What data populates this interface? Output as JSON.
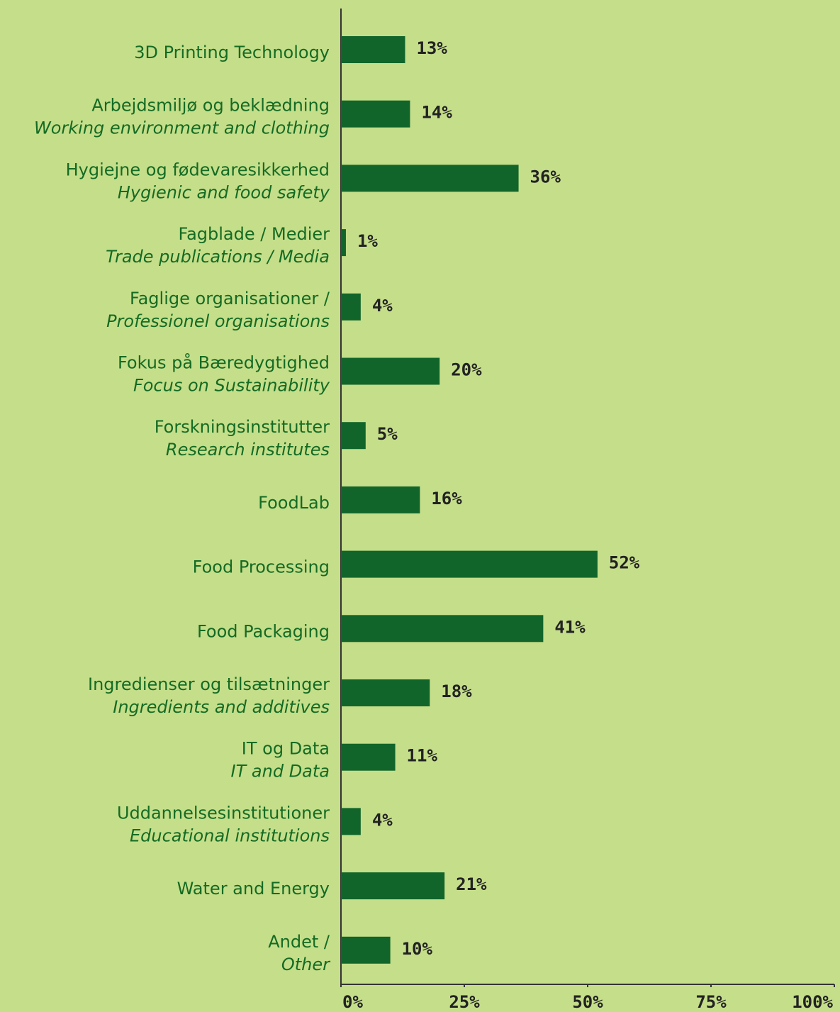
{
  "chart_data": {
    "type": "hbar",
    "color": "#11652a",
    "categories": [
      {
        "label": "3D Printing Technology"
      },
      {
        "label": "Arbejdsmiljø og beklædning",
        "translation": "Working environment and clothing"
      },
      {
        "label": "Hygiejne og fødevaresikkerhed",
        "translation": "Hygienic and food safety"
      },
      {
        "label": "Fagblade / Medier",
        "translation": "Trade publications / Media"
      },
      {
        "label": "Faglige organisationer /",
        "translation": "Professionel organisations"
      },
      {
        "label": "Fokus på Bæredygtighed",
        "translation": "Focus on Sustainability"
      },
      {
        "label": "Forskningsinstitutter",
        "translation": "Research institutes"
      },
      {
        "label": "FoodLab"
      },
      {
        "label": "Food Processing"
      },
      {
        "label": "Food Packaging"
      },
      {
        "label": "Ingredienser og tilsætninger",
        "translation": "Ingredients and additives"
      },
      {
        "label": "IT og Data",
        "translation": "IT and Data"
      },
      {
        "label": "Uddannelsesinstitutioner",
        "translation": "Educational institutions"
      },
      {
        "label": "Water and Energy"
      },
      {
        "label": "Andet /",
        "translation": "Other"
      }
    ],
    "values": [
      13,
      14,
      36,
      1,
      4,
      20,
      5,
      16,
      52,
      41,
      18,
      11,
      4,
      21,
      10
    ],
    "value_labels": [
      "13%",
      "14%",
      "36%",
      "1%",
      "4%",
      "20%",
      "5%",
      "16%",
      "52%",
      "41%",
      "18%",
      "11%",
      "4%",
      "21%",
      "10%"
    ],
    "xlim": [
      0,
      100
    ],
    "xticks": [
      {
        "value": 0,
        "label": "0%"
      },
      {
        "value": 25,
        "label": "25%"
      },
      {
        "value": 50,
        "label": "50%"
      },
      {
        "value": 75,
        "label": "75%"
      },
      {
        "value": 100,
        "label": "100%"
      }
    ]
  }
}
